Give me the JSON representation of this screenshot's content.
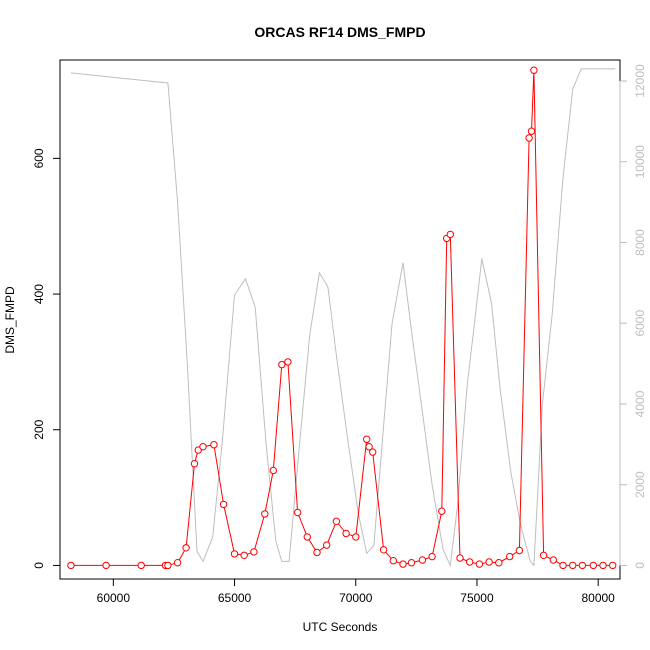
{
  "chart_data": {
    "type": "line",
    "title": "ORCAS RF14 DMS_FMPD",
    "xlabel": "UTC Seconds",
    "ylabel": "DMS_FMPD",
    "xlim": [
      57800,
      80900
    ],
    "ylim": [
      -20,
      745
    ],
    "y2lim": [
      -336,
      12520
    ],
    "x_ticks": [
      60000,
      65000,
      70000,
      75000,
      80000
    ],
    "y_ticks": [
      0,
      200,
      400,
      600
    ],
    "y2_ticks": [
      0,
      2000,
      4000,
      6000,
      8000,
      10000,
      12000
    ],
    "grid": false,
    "series": [
      {
        "axis": "left",
        "color": "#ff0000",
        "marker": "open-circle",
        "x": [
          58250,
          59700,
          61150,
          62150,
          62250,
          62650,
          63000,
          63350,
          63500,
          63700,
          64150,
          64550,
          65000,
          65400,
          65800,
          66250,
          66600,
          66950,
          67200,
          67600,
          68000,
          68400,
          68800,
          69200,
          69600,
          70000,
          70450,
          70550,
          70700,
          71150,
          71550,
          71950,
          72300,
          72750,
          73150,
          73550,
          73750,
          73900,
          74300,
          74700,
          75100,
          75500,
          75900,
          76350,
          76750,
          77150,
          77250,
          77350,
          77750,
          78150,
          78550,
          78950,
          79350,
          79800,
          80200,
          80600
        ],
        "values": [
          0,
          0,
          0,
          0,
          0,
          4,
          26,
          150,
          170,
          175,
          178,
          90,
          17,
          15,
          20,
          76,
          140,
          296,
          300,
          78,
          42,
          19,
          30,
          65,
          47,
          42,
          186,
          175,
          167,
          23,
          7,
          2,
          4,
          8,
          13,
          80,
          482,
          488,
          11,
          5,
          2,
          5,
          4,
          13,
          22,
          630,
          640,
          730,
          15,
          8,
          0,
          0,
          0,
          0,
          0,
          0
        ]
      },
      {
        "axis": "right",
        "color": "#bebebe",
        "marker": "none",
        "x": [
          58250,
          62250,
          62650,
          63050,
          63450,
          63700,
          64100,
          64500,
          65000,
          65450,
          65850,
          66300,
          66700,
          66950,
          67250,
          67650,
          68100,
          68500,
          68850,
          69200,
          69650,
          70100,
          70450,
          70750,
          71100,
          71500,
          71950,
          72300,
          72750,
          73150,
          73600,
          73900,
          74200,
          74600,
          74900,
          75200,
          75600,
          75950,
          76400,
          76800,
          77200,
          77350,
          77700,
          78100,
          78550,
          78950,
          79300,
          80700
        ],
        "values": [
          12200,
          11950,
          9000,
          5000,
          350,
          100,
          700,
          3100,
          6700,
          7100,
          6400,
          3000,
          600,
          100,
          100,
          2800,
          5700,
          7250,
          6900,
          5200,
          3200,
          1300,
          300,
          500,
          3100,
          6000,
          7500,
          5800,
          3800,
          2000,
          400,
          0,
          1500,
          4500,
          6000,
          7600,
          6500,
          4400,
          2300,
          1000,
          100,
          0,
          4000,
          6200,
          9600,
          11800,
          12300,
          12300
        ]
      }
    ]
  }
}
